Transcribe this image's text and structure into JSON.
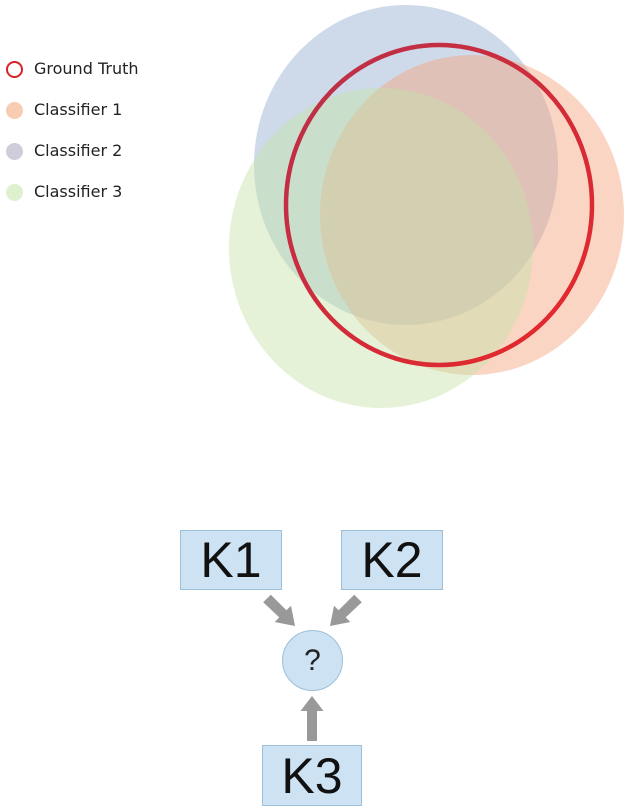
{
  "legend": [
    {
      "label": "Ground Truth",
      "style": "ring",
      "color": "#d8232a"
    },
    {
      "label": "Classifier 1",
      "style": "fill",
      "color": "#f8ccb2"
    },
    {
      "label": "Classifier 2",
      "style": "fill",
      "color": "#cdcddb"
    },
    {
      "label": "Classifier 3",
      "style": "fill",
      "color": "#dff0cf"
    }
  ],
  "venn_colors": {
    "ground_truth_ring_start": "#b8304a",
    "ground_truth_ring_end": "#e8282a",
    "classifier_1": "#f4a27c",
    "classifier_2": "#93add0",
    "classifier_3": "#c5e3a8"
  },
  "graph": {
    "k1": "K1",
    "k2": "K2",
    "k3": "K3",
    "center": "?",
    "box_fill": "#cde3f3",
    "node_fill": "#cde3f3",
    "arrow_color": "#999999"
  }
}
